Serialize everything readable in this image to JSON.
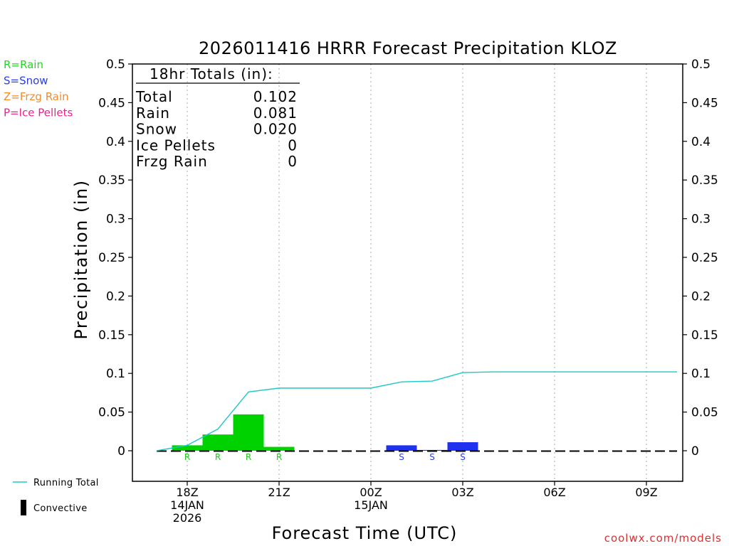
{
  "chart_data": {
    "type": "bar",
    "title": "2026011416 HRRR Forecast Precipitation KLOZ",
    "xlabel": "Forecast Time (UTC)",
    "ylabel": "Precipitation (in)",
    "ylim": [
      -0.04,
      0.5
    ],
    "xlim": [
      16.5,
      34
    ],
    "grid": "vertical dotted",
    "y_ticks": [
      0,
      0.05,
      0.1,
      0.15,
      0.2,
      0.25,
      0.3,
      0.35,
      0.4,
      0.45,
      0.5
    ],
    "y_tick_labels": [
      "0",
      "0.05",
      "0.1",
      "0.15",
      "0.2",
      "0.25",
      "0.3",
      "0.35",
      "0.4",
      "0.45",
      "0.5"
    ],
    "x_ticks": [
      {
        "x": 18,
        "lines": [
          "18Z",
          "14JAN",
          "2026"
        ]
      },
      {
        "x": 21,
        "lines": [
          "21Z"
        ]
      },
      {
        "x": 24,
        "lines": [
          "00Z",
          "15JAN"
        ]
      },
      {
        "x": 27,
        "lines": [
          "03Z"
        ]
      },
      {
        "x": 30,
        "lines": [
          "06Z"
        ]
      },
      {
        "x": 33,
        "lines": [
          "09Z"
        ]
      }
    ],
    "bars": [
      {
        "x": 18,
        "value": 0.007,
        "type": "R"
      },
      {
        "x": 19,
        "value": 0.021,
        "type": "R"
      },
      {
        "x": 20,
        "value": 0.047,
        "type": "R"
      },
      {
        "x": 21,
        "value": 0.005,
        "type": "R"
      },
      {
        "x": 25,
        "value": 0.007,
        "type": "S"
      },
      {
        "x": 26,
        "value": 0.001,
        "type": "S"
      },
      {
        "x": 27,
        "value": 0.011,
        "type": "S"
      }
    ],
    "running_total": {
      "name": "Running Total",
      "x": [
        17,
        18,
        19,
        20,
        21,
        22,
        23,
        24,
        25,
        26,
        27,
        28,
        29,
        30,
        31,
        32,
        33,
        34
      ],
      "values": [
        0,
        0.007,
        0.028,
        0.076,
        0.081,
        0.081,
        0.081,
        0.081,
        0.089,
        0.09,
        0.101,
        0.102,
        0.102,
        0.102,
        0.102,
        0.102,
        0.102,
        0.102
      ]
    },
    "totals_box": {
      "heading": "18hr Totals (in):",
      "rows": [
        {
          "label": "Total",
          "value": "0.102"
        },
        {
          "label": "Rain",
          "value": "0.081"
        },
        {
          "label": "Snow",
          "value": "0.020"
        },
        {
          "label": "Ice Pellets",
          "value": "0"
        },
        {
          "label": "Frzg Rain",
          "value": "0"
        }
      ]
    },
    "type_legend": [
      {
        "text": "R=Rain",
        "color": "#22d822"
      },
      {
        "text": "S=Snow",
        "color": "#2a3ee8"
      },
      {
        "text": "Z=Frzg Rain",
        "color": "#f08c2c"
      },
      {
        "text": "P=Ice Pellets",
        "color": "#e8238c"
      }
    ],
    "series_legend": [
      {
        "text": "Running Total",
        "color": "#1ec8c8",
        "symbol": "line"
      },
      {
        "text": "Convective",
        "color": "#000000",
        "symbol": "bar"
      }
    ],
    "colors": {
      "rain": "#00d200",
      "snow": "#1e32f0",
      "running_total": "#1ec8c8",
      "rain_label": "#22c822",
      "snow_label": "#2a3ee8"
    },
    "credit": "coolwx.com/models",
    "credit_color": "#d83030"
  }
}
